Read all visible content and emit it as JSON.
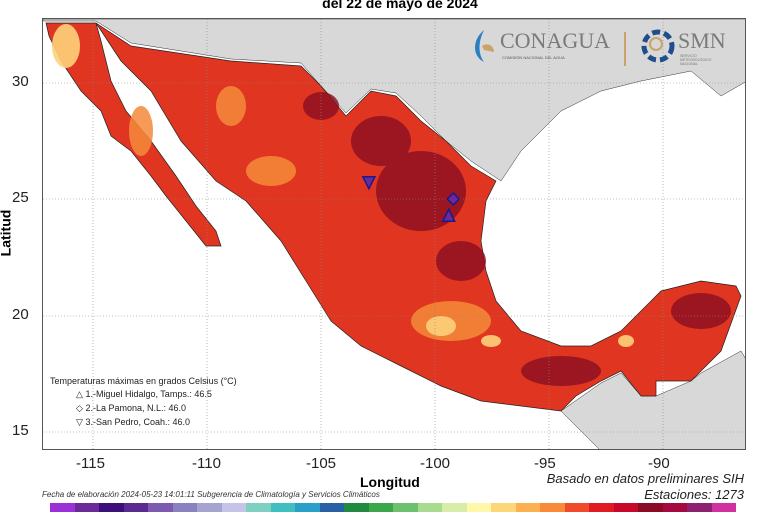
{
  "title": "del 22 de mayo de 2024",
  "axes": {
    "xlabel": "Longitud",
    "ylabel": "Latitud",
    "xticks": [
      -115,
      -110,
      -105,
      -100,
      -95,
      -90
    ],
    "yticks": [
      30,
      25,
      20,
      15
    ],
    "xlim": [
      -117.2,
      -86.3
    ],
    "ylim": [
      14.2,
      32.8
    ]
  },
  "logos": {
    "conagua": "CONAGUA",
    "conagua_sub": "COMISIÓN NACIONAL DEL AGUA",
    "smn": "SMN",
    "smn_sub": "SERVICIO METEOROLÓGICO NACIONAL"
  },
  "legend": {
    "title": "Temperaturas máximas en grados Celsius (°C)",
    "items": [
      {
        "symbol": "△",
        "label": "1.-Miguel Hidalgo, Tamps.: 46.5",
        "lon": -99.4,
        "lat": 24.3,
        "shape": "triangle-up"
      },
      {
        "symbol": "◇",
        "label": "2.-La Pamona, N.L.: 46.0",
        "lon": -99.2,
        "lat": 25.0,
        "shape": "diamond"
      },
      {
        "symbol": "▽",
        "label": "3.-San Pedro, Coah.: 46.0",
        "lon": -102.9,
        "lat": 25.7,
        "shape": "triangle-down"
      }
    ]
  },
  "footer": {
    "fecha": "Fecha de elaboración 2024-05-23 14:01:11 Subgerencia de Climatología y Servicios Climáticos",
    "basado": "Basado en datos preliminares SIH",
    "estaciones": "Estaciones:  1273"
  },
  "colorbar": [
    "#9b30d9",
    "#6a2a9a",
    "#3d0f7a",
    "#5a2a90",
    "#7d5ab0",
    "#8a82c0",
    "#a5a3d0",
    "#c5c3e6",
    "#7fd0c0",
    "#3fbfc0",
    "#2aa0c8",
    "#2860a8",
    "#1f8a40",
    "#3aa84a",
    "#6cc070",
    "#a8da90",
    "#d6eea8",
    "#fff8a8",
    "#fed67a",
    "#fdb050",
    "#f98a3a",
    "#f04a2a",
    "#e01c20",
    "#c8082a",
    "#8c0a24",
    "#a40a40",
    "#8e2070",
    "#d030a0"
  ],
  "map_colors": {
    "land_outside": "#d8d8d8",
    "water": "#ffffff",
    "base": "#e03520",
    "hot": "#8a0f22",
    "warm": "#f58a3a",
    "mild": "#fdd27a"
  }
}
